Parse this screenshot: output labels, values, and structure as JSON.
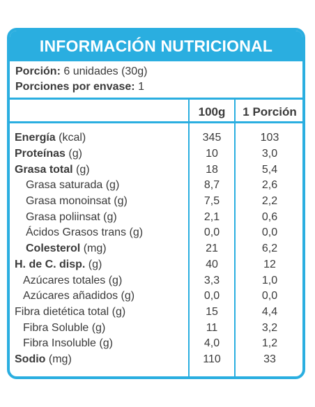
{
  "title": "INFORMACIÓN NUTRICIONAL",
  "serving": {
    "portion_label": "Porción:",
    "portion_value": "6 unidades (30g)",
    "per_package_label": "Porciones por envase:",
    "per_package_value": "1"
  },
  "columns": {
    "per100": "100g",
    "perPortion": "1 Porción"
  },
  "rows": [
    {
      "name": "Energía",
      "unit": "(kcal)",
      "v100": "345",
      "vp": "103",
      "bold": true,
      "indent": 0
    },
    {
      "name": "Proteínas",
      "unit": "(g)",
      "v100": "10",
      "vp": "3,0",
      "bold": true,
      "indent": 0
    },
    {
      "name": "Grasa total",
      "unit": "(g)",
      "v100": "18",
      "vp": "5,4",
      "bold": true,
      "indent": 0
    },
    {
      "name": "Grasa saturada",
      "unit": "(g)",
      "v100": "8,7",
      "vp": "2,6",
      "bold": false,
      "indent": 1
    },
    {
      "name": "Grasa monoinsat",
      "unit": "(g)",
      "v100": "7,5",
      "vp": "2,2",
      "bold": false,
      "indent": 1
    },
    {
      "name": "Grasa poliinsat",
      "unit": "(g)",
      "v100": "2,1",
      "vp": "0,6",
      "bold": false,
      "indent": 1
    },
    {
      "name": "Ácidos Grasos trans",
      "unit": "(g)",
      "v100": "0,0",
      "vp": "0,0",
      "bold": false,
      "indent": 1
    },
    {
      "name": "Colesterol",
      "unit": "(mg)",
      "v100": "21",
      "vp": "6,2",
      "bold": true,
      "indent": 1
    },
    {
      "name": "H. de C. disp.",
      "unit": "(g)",
      "v100": "40",
      "vp": "12",
      "bold": true,
      "indent": 0
    },
    {
      "name": "Azúcares totales",
      "unit": "(g)",
      "v100": "3,3",
      "vp": "1,0",
      "bold": false,
      "indent": 2
    },
    {
      "name": "Azúcares añadidos",
      "unit": "(g)",
      "v100": "0,0",
      "vp": "0,0",
      "bold": false,
      "indent": 2
    },
    {
      "name": "Fibra dietética total",
      "unit": "(g)",
      "v100": "15",
      "vp": "4,4",
      "bold": false,
      "indent": 0
    },
    {
      "name": "Fibra Soluble",
      "unit": "(g)",
      "v100": "11",
      "vp": "3,2",
      "bold": false,
      "indent": 2
    },
    {
      "name": "Fibra Insoluble",
      "unit": "(g)",
      "v100": "4,0",
      "vp": "1,2",
      "bold": false,
      "indent": 2
    },
    {
      "name": "Sodio",
      "unit": "(mg)",
      "v100": "110",
      "vp": "33",
      "bold": true,
      "indent": 0
    }
  ],
  "colors": {
    "accent": "#2aaee0",
    "text": "#3a3a3a"
  }
}
